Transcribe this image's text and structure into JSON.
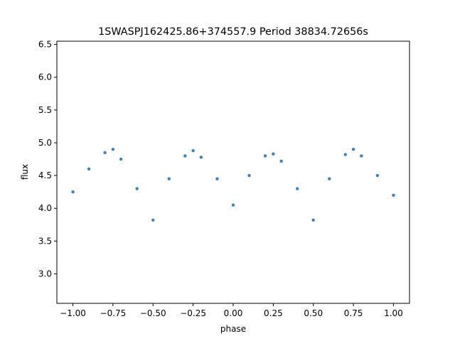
{
  "chart_data": {
    "type": "scatter",
    "title": "1SWASPJ162425.86+374557.9 Period 38834.72656s",
    "xlabel": "phase",
    "ylabel": "flux",
    "xlim": [
      -1.1,
      1.1
    ],
    "ylim": [
      2.55,
      6.55
    ],
    "x_ticks": [
      -1.0,
      -0.75,
      -0.5,
      -0.25,
      0.0,
      0.25,
      0.5,
      0.75,
      1.0
    ],
    "x_tick_labels": [
      "−1.00",
      "−0.75",
      "−0.50",
      "−0.25",
      "0.00",
      "0.25",
      "0.50",
      "0.75",
      "1.00"
    ],
    "y_ticks": [
      3.0,
      3.5,
      4.0,
      4.5,
      5.0,
      5.5,
      6.0,
      6.5
    ],
    "y_tick_labels": [
      "3.0",
      "3.5",
      "4.0",
      "4.5",
      "5.0",
      "5.5",
      "6.0",
      "6.5"
    ],
    "grid": false,
    "marker_color": "#3b82b9",
    "series": [
      {
        "x": [
          -1.0,
          -0.9,
          -0.8,
          -0.75,
          -0.7,
          -0.6,
          -0.5,
          -0.4,
          -0.3,
          -0.25,
          -0.2,
          -0.1,
          0.0,
          0.1,
          0.2,
          0.25,
          0.3,
          0.4,
          0.5,
          0.6,
          0.7,
          0.75,
          0.8,
          0.9,
          1.0
        ],
        "y": [
          4.25,
          4.6,
          4.85,
          4.9,
          4.75,
          4.3,
          3.82,
          4.45,
          4.8,
          4.88,
          4.78,
          4.45,
          4.05,
          4.5,
          4.8,
          4.83,
          4.72,
          4.3,
          3.82,
          4.45,
          4.82,
          4.9,
          4.8,
          4.5,
          4.2
        ]
      }
    ]
  }
}
